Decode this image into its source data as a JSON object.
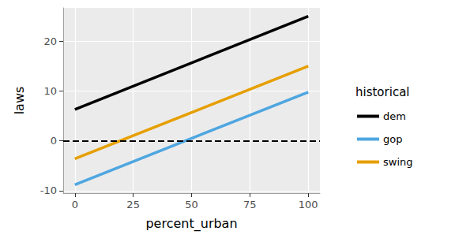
{
  "chart_data": {
    "type": "line",
    "x_label": "percent_urban",
    "y_label": "laws",
    "legend_title": "historical",
    "x": [
      0,
      100
    ],
    "series": [
      {
        "name": "dem",
        "color": "#000000",
        "values": [
          6.3,
          25
        ]
      },
      {
        "name": "gop",
        "color": "#4EA6E0",
        "values": [
          -8.8,
          9.8
        ]
      },
      {
        "name": "swing",
        "color": "#E69F00",
        "values": [
          -3.6,
          15
        ]
      }
    ],
    "reference_lines": [
      {
        "y": 0,
        "line_style": "dashed",
        "color": "#000000"
      }
    ],
    "xlim": [
      -5,
      105
    ],
    "xticks": [
      0,
      25,
      50,
      75,
      100
    ],
    "ylim": [
      -10.5,
      26.7
    ],
    "yticks": [
      -10,
      0,
      10,
      20
    ],
    "grid": true,
    "legend": "right"
  }
}
